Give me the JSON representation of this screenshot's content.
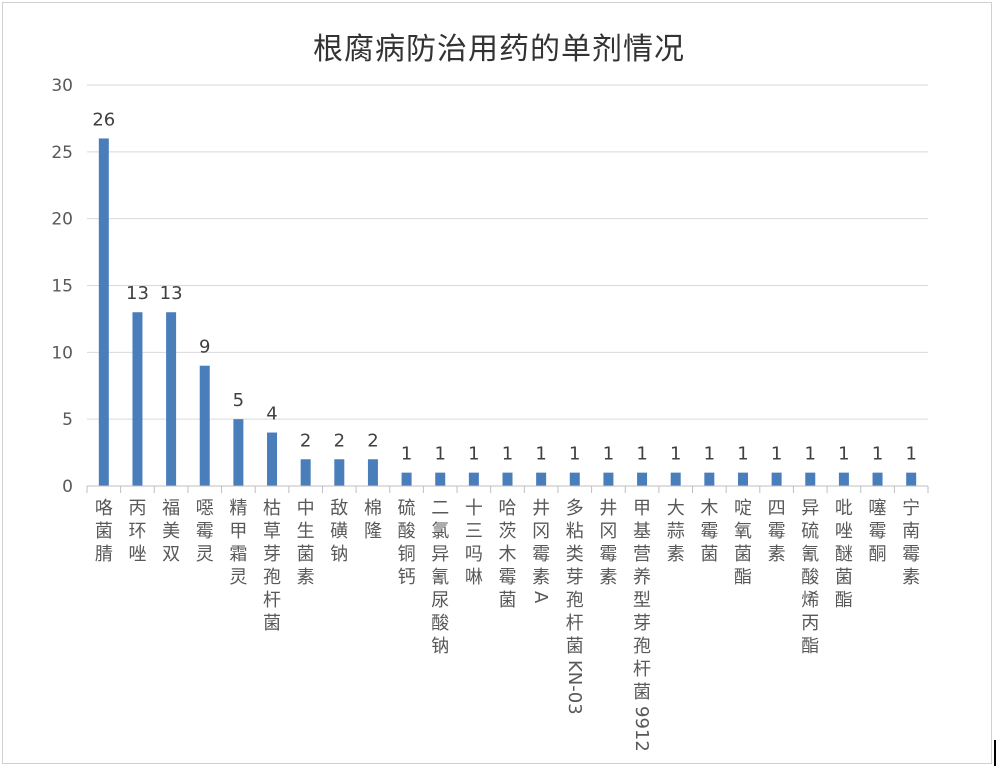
{
  "chart_data": {
    "type": "bar",
    "title": "根腐病防治用药的单剂情况",
    "xlabel": "",
    "ylabel": "",
    "ylim": [
      0,
      30
    ],
    "yticks": [
      0,
      5,
      10,
      15,
      20,
      25,
      30
    ],
    "grid": true,
    "legend": "none",
    "bar_color": "#4a7ebb",
    "categories": [
      "咯菌腈",
      "丙环唑",
      "福美双",
      "噁霉灵",
      "精甲霜灵",
      "枯草芽孢杆菌",
      "中生菌素",
      "敌磺钠",
      "棉隆",
      "硫酸铜钙",
      "二氯异氰尿酸钠",
      "十三吗啉",
      "哈茨木霉菌",
      "井冈霉素A",
      "多粘类芽孢杆菌KN-03",
      "井冈霉素",
      "甲基营养型芽孢杆菌9912",
      "大蒜素",
      "木霉菌",
      "啶氧菌酯",
      "四霉素",
      "异硫氰酸烯丙酯",
      "吡唑醚菌酯",
      "噻霉酮",
      "宁南霉素"
    ],
    "values": [
      26,
      13,
      13,
      9,
      5,
      4,
      2,
      2,
      2,
      1,
      1,
      1,
      1,
      1,
      1,
      1,
      1,
      1,
      1,
      1,
      1,
      1,
      1,
      1,
      1
    ]
  }
}
